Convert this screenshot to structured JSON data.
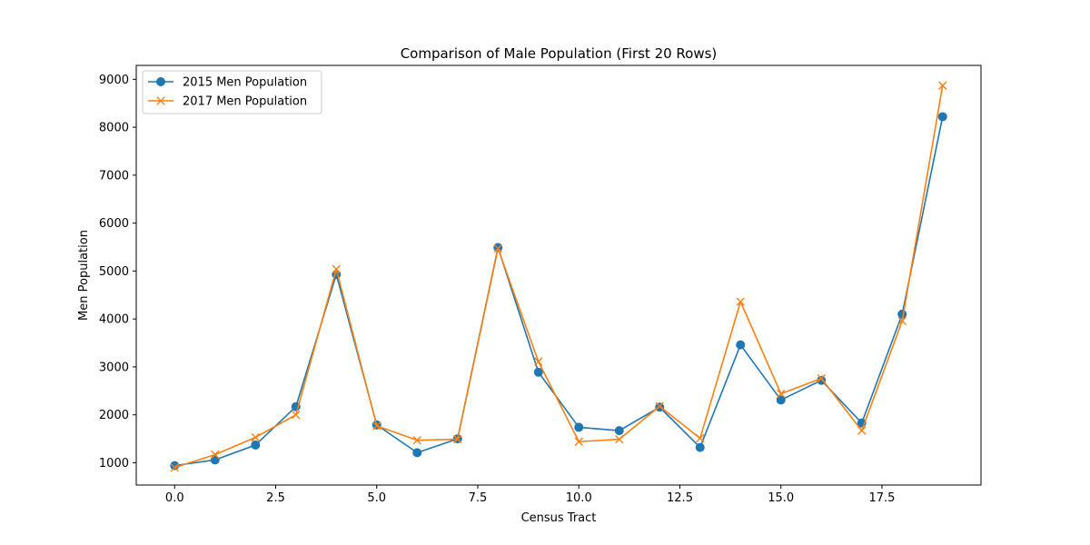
{
  "chart_data": {
    "type": "line",
    "title": "Comparison of Male Population (First 20 Rows)",
    "xlabel": "Census Tract",
    "ylabel": "Men Population",
    "x": [
      0,
      1,
      2,
      3,
      4,
      5,
      6,
      7,
      8,
      9,
      10,
      11,
      12,
      13,
      14,
      15,
      16,
      17,
      18,
      19
    ],
    "xlim": [
      -0.95,
      19.95
    ],
    "ylim": [
      535,
      9290
    ],
    "xticks": [
      0.0,
      2.5,
      5.0,
      7.5,
      10.0,
      12.5,
      15.0,
      17.5
    ],
    "xtick_labels": [
      "0.0",
      "2.5",
      "5.0",
      "7.5",
      "10.0",
      "12.5",
      "15.0",
      "17.5"
    ],
    "yticks": [
      1000,
      2000,
      3000,
      4000,
      5000,
      6000,
      7000,
      8000,
      9000
    ],
    "ytick_labels": [
      "1000",
      "2000",
      "3000",
      "4000",
      "5000",
      "6000",
      "7000",
      "8000",
      "9000"
    ],
    "grid": false,
    "legend_position": "top-left",
    "series": [
      {
        "name": "2015 Men Population",
        "color": "#1f77b4",
        "marker": "circle",
        "values": [
          940,
          1060,
          1370,
          2170,
          4930,
          1790,
          1210,
          1500,
          5490,
          2890,
          1740,
          1670,
          2160,
          1320,
          3460,
          2310,
          2720,
          1830,
          4100,
          8220
        ]
      },
      {
        "name": "2017 Men Population",
        "color": "#ff7f0e",
        "marker": "x",
        "values": [
          900,
          1170,
          1530,
          2000,
          5040,
          1770,
          1470,
          1490,
          5470,
          3110,
          1440,
          1490,
          2180,
          1510,
          4360,
          2440,
          2760,
          1670,
          3960,
          8870
        ]
      }
    ]
  }
}
